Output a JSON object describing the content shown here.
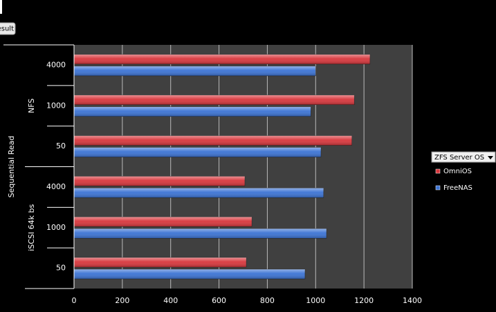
{
  "chart_data": {
    "type": "bar",
    "orientation": "horizontal",
    "field_button": "esult",
    "outer_category": "Sequential Read",
    "category_groups": [
      {
        "label": "NFS",
        "categories": [
          "4000",
          "1000",
          "50"
        ]
      },
      {
        "label": "iSCSI 64k bs",
        "categories": [
          "4000",
          "1000",
          "50"
        ]
      }
    ],
    "series": [
      {
        "name": "OmniOS",
        "color": "#d8363c",
        "values": [
          1225,
          1160,
          1150,
          707,
          736,
          713
        ]
      },
      {
        "name": "FreeNAS",
        "color": "#3b73d4",
        "values": [
          1000,
          980,
          1022,
          1033,
          1045,
          956
        ]
      }
    ],
    "legend_title": "ZFS Server OS",
    "legend": "right",
    "xlim": [
      0,
      1400
    ],
    "xticks": [
      0,
      200,
      400,
      600,
      800,
      1000,
      1200,
      1400
    ],
    "grid": true
  }
}
